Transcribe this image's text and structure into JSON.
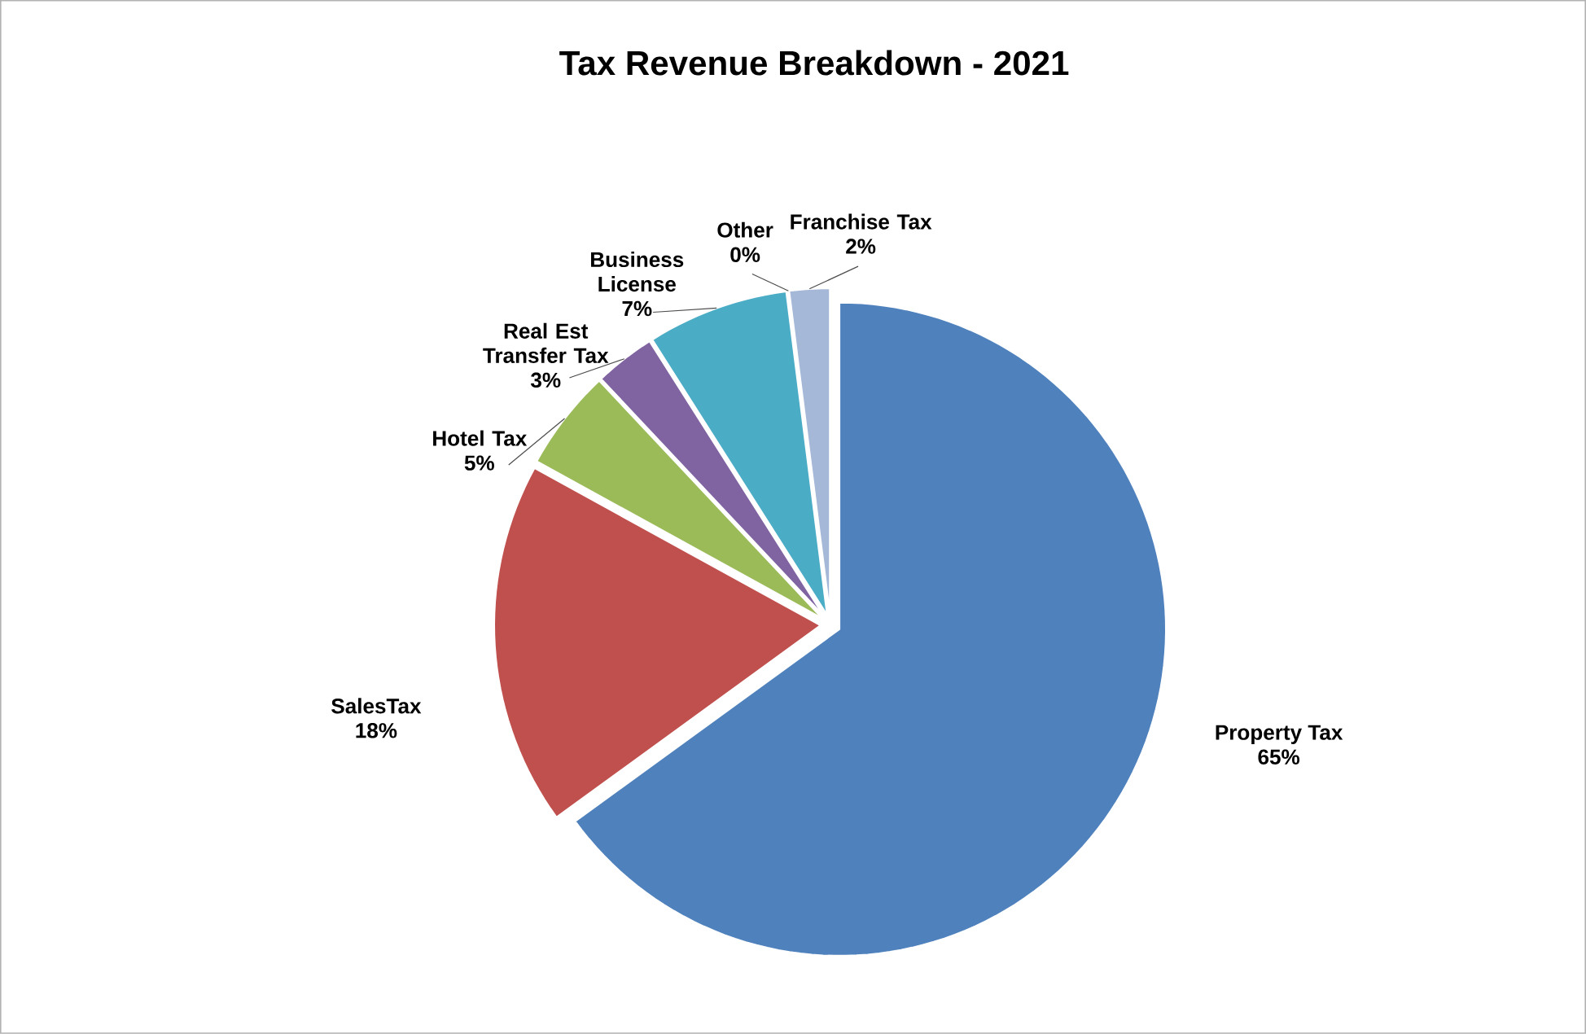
{
  "chart_data": {
    "type": "pie",
    "title": "Tax Revenue Breakdown - 2021",
    "categories": [
      "Property Tax",
      "SalesTax",
      "Hotel Tax",
      "Real Est Transfer Tax",
      "Business License",
      "Other",
      "Franchise Tax"
    ],
    "values": [
      65,
      18,
      5,
      3,
      7,
      0,
      2
    ],
    "value_labels": [
      "65%",
      "18%",
      "5%",
      "3%",
      "7%",
      "0%",
      "2%"
    ],
    "colors": [
      "#4f81bd",
      "#c0504d",
      "#9bbb59",
      "#8064a2",
      "#4bacc6",
      "#f79646",
      "#a5b8d8"
    ]
  }
}
